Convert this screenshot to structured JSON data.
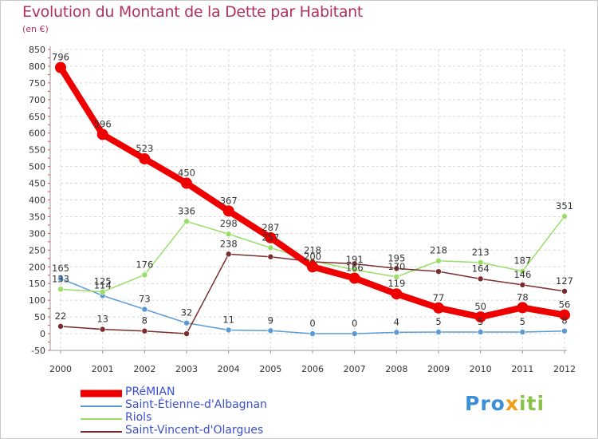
{
  "title": "Evolution du Montant de la Dette par Habitant",
  "subtitle": "(en €)",
  "brand": {
    "part1": "Pro",
    "part2": "x",
    "part3": "iti"
  },
  "chart_data": {
    "type": "line",
    "x": [
      "2000",
      "2001",
      "2002",
      "2003",
      "2004",
      "2005",
      "2006",
      "2007",
      "2008",
      "2009",
      "2010",
      "2011",
      "2012"
    ],
    "ylim": [
      -50,
      850
    ],
    "yticks": [
      -50,
      0,
      50,
      100,
      150,
      200,
      250,
      300,
      350,
      400,
      450,
      500,
      550,
      600,
      650,
      700,
      750,
      800,
      850
    ],
    "grid": true,
    "legend_position": "bottom-left",
    "series": [
      {
        "name": "PRéMIAN",
        "color": "#ee0000",
        "width": 8,
        "values": [
          796,
          596,
          523,
          450,
          367,
          287,
          200,
          166,
          119,
          77,
          50,
          78,
          56
        ],
        "labels": [
          "796",
          "596",
          "523",
          "450",
          "367",
          "287",
          "200",
          "166",
          "119",
          "77",
          "50",
          "78",
          "56"
        ]
      },
      {
        "name": "Saint-Étienne-d'Albagnan",
        "color": "#5b9bd5",
        "width": 1.5,
        "values": [
          165,
          114,
          73,
          32,
          11,
          9,
          0,
          0,
          4,
          5,
          5,
          5,
          8
        ],
        "labels": [
          "165",
          "114",
          "73",
          "32",
          "11",
          "9",
          "0",
          "0",
          "4",
          "5",
          "5",
          "5",
          "8"
        ]
      },
      {
        "name": "Riols",
        "color": "#99dd66",
        "width": 1.5,
        "values": [
          133,
          125,
          176,
          336,
          298,
          257,
          218,
          191,
          170,
          218,
          213,
          187,
          351
        ],
        "labels": [
          "133",
          "125",
          "176",
          "336",
          "298",
          "257",
          "218",
          "191",
          "170",
          "218",
          "213",
          "187",
          "351"
        ]
      },
      {
        "name": "Saint-Vincent-d'Olargues",
        "color": "#7b2d2d",
        "width": 1.5,
        "values": [
          22,
          13,
          8,
          0,
          238,
          230,
          215,
          209,
          195,
          186,
          164,
          146,
          127
        ],
        "labels": [
          "22",
          "13",
          "8",
          "",
          "238",
          "",
          "",
          "",
          "195",
          "",
          "164",
          "146",
          "127"
        ]
      }
    ]
  }
}
